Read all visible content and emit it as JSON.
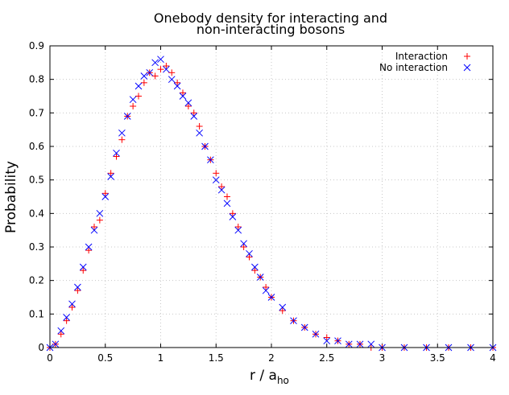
{
  "chart_data": {
    "type": "scatter",
    "title_lines": [
      "Onebody density for interacting and",
      "non-interacting bosons"
    ],
    "xlabel": "r / a",
    "xlabel_sub": "ho",
    "ylabel": "Probability",
    "xlim": [
      0,
      4
    ],
    "ylim": [
      0,
      0.9
    ],
    "xticks": [
      "0",
      "0.5",
      "1",
      "1.5",
      "2",
      "2.5",
      "3",
      "3.5",
      "4"
    ],
    "yticks": [
      "0",
      "0.1",
      "0.2",
      "0.3",
      "0.4",
      "0.5",
      "0.6",
      "0.7",
      "0.8",
      "0.9"
    ],
    "grid": true,
    "legend_position": "top-right",
    "series": [
      {
        "name": "Interaction",
        "marker": "plus",
        "color": "#ff0000",
        "x": [
          0.0,
          0.05,
          0.1,
          0.15,
          0.2,
          0.25,
          0.3,
          0.35,
          0.4,
          0.45,
          0.5,
          0.55,
          0.6,
          0.65,
          0.7,
          0.75,
          0.8,
          0.85,
          0.9,
          0.95,
          1.0,
          1.05,
          1.1,
          1.15,
          1.2,
          1.25,
          1.3,
          1.35,
          1.4,
          1.45,
          1.5,
          1.55,
          1.6,
          1.65,
          1.7,
          1.75,
          1.8,
          1.85,
          1.9,
          1.95,
          2.0,
          2.1,
          2.2,
          2.3,
          2.4,
          2.5,
          2.6,
          2.7,
          2.8,
          2.9,
          3.0,
          3.2,
          3.4,
          3.6,
          3.8,
          4.0
        ],
        "y": [
          0.0,
          0.01,
          0.04,
          0.08,
          0.12,
          0.17,
          0.23,
          0.29,
          0.36,
          0.38,
          0.46,
          0.52,
          0.57,
          0.62,
          0.69,
          0.72,
          0.75,
          0.79,
          0.82,
          0.81,
          0.83,
          0.84,
          0.82,
          0.79,
          0.76,
          0.72,
          0.7,
          0.66,
          0.6,
          0.56,
          0.52,
          0.48,
          0.45,
          0.4,
          0.36,
          0.3,
          0.27,
          0.23,
          0.21,
          0.18,
          0.15,
          0.11,
          0.08,
          0.06,
          0.04,
          0.03,
          0.02,
          0.01,
          0.01,
          0.0,
          0.0,
          0.0,
          0.0,
          0.0,
          0.0,
          0.0
        ]
      },
      {
        "name": "No interaction",
        "marker": "cross",
        "color": "#0000ff",
        "x": [
          0.0,
          0.05,
          0.1,
          0.15,
          0.2,
          0.25,
          0.3,
          0.35,
          0.4,
          0.45,
          0.5,
          0.55,
          0.6,
          0.65,
          0.7,
          0.75,
          0.8,
          0.85,
          0.9,
          0.95,
          1.0,
          1.05,
          1.1,
          1.15,
          1.2,
          1.25,
          1.3,
          1.35,
          1.4,
          1.45,
          1.5,
          1.55,
          1.6,
          1.65,
          1.7,
          1.75,
          1.8,
          1.85,
          1.9,
          1.95,
          2.0,
          2.1,
          2.2,
          2.3,
          2.4,
          2.5,
          2.6,
          2.7,
          2.8,
          2.9,
          3.0,
          3.2,
          3.4,
          3.6,
          3.8,
          4.0
        ],
        "y": [
          0.0,
          0.01,
          0.05,
          0.09,
          0.13,
          0.18,
          0.24,
          0.3,
          0.35,
          0.4,
          0.45,
          0.51,
          0.58,
          0.64,
          0.69,
          0.74,
          0.78,
          0.81,
          0.82,
          0.85,
          0.86,
          0.83,
          0.8,
          0.78,
          0.75,
          0.73,
          0.69,
          0.64,
          0.6,
          0.56,
          0.5,
          0.47,
          0.43,
          0.39,
          0.35,
          0.31,
          0.28,
          0.24,
          0.21,
          0.17,
          0.15,
          0.12,
          0.08,
          0.06,
          0.04,
          0.02,
          0.02,
          0.01,
          0.01,
          0.01,
          0.0,
          0.0,
          0.0,
          0.0,
          0.0,
          0.0
        ]
      }
    ]
  }
}
